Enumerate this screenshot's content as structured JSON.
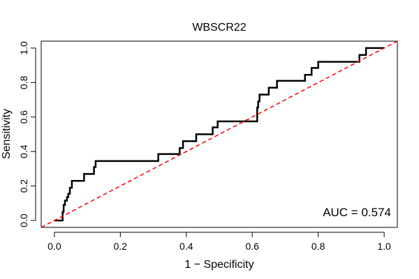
{
  "chart_data": {
    "type": "line",
    "title": "WBSCR22",
    "xlabel": "1 − Specificity",
    "ylabel": "Sensitivity",
    "xlim": [
      -0.04,
      1.04
    ],
    "ylim": [
      -0.04,
      1.04
    ],
    "xticks": [
      0.0,
      0.2,
      0.4,
      0.6,
      0.8,
      1.0
    ],
    "xtick_labels": [
      "0.0",
      "0.2",
      "0.4",
      "0.6",
      "0.8",
      "1.0"
    ],
    "yticks": [
      0.0,
      0.2,
      0.4,
      0.6,
      0.8,
      1.0
    ],
    "ytick_labels": [
      "0.0",
      "0.2",
      "0.4",
      "0.6",
      "0.8",
      "1.0"
    ],
    "grid": false,
    "annotation": "AUC = 0.574",
    "series": [
      {
        "color": "#000000",
        "style": "solid",
        "x": [
          0.0,
          0.025,
          0.025,
          0.028,
          0.028,
          0.032,
          0.032,
          0.038,
          0.038,
          0.042,
          0.042,
          0.047,
          0.047,
          0.053,
          0.053,
          0.065,
          0.065,
          0.09,
          0.09,
          0.12,
          0.12,
          0.125,
          0.125,
          0.315,
          0.315,
          0.38,
          0.38,
          0.39,
          0.39,
          0.43,
          0.43,
          0.48,
          0.48,
          0.495,
          0.495,
          0.615,
          0.615,
          0.618,
          0.618,
          0.622,
          0.622,
          0.65,
          0.65,
          0.66,
          0.66,
          0.675,
          0.675,
          0.76,
          0.76,
          0.78,
          0.78,
          0.8,
          0.8,
          0.925,
          0.925,
          0.945,
          0.945,
          1.0
        ],
        "y": [
          0.0,
          0.0,
          0.05,
          0.05,
          0.09,
          0.09,
          0.115,
          0.115,
          0.135,
          0.135,
          0.155,
          0.155,
          0.19,
          0.19,
          0.23,
          0.23,
          0.23,
          0.23,
          0.27,
          0.27,
          0.31,
          0.31,
          0.345,
          0.345,
          0.385,
          0.385,
          0.42,
          0.42,
          0.46,
          0.46,
          0.5,
          0.5,
          0.54,
          0.54,
          0.575,
          0.575,
          0.655,
          0.655,
          0.69,
          0.69,
          0.73,
          0.73,
          0.77,
          0.77,
          0.77,
          0.77,
          0.81,
          0.81,
          0.845,
          0.845,
          0.885,
          0.885,
          0.92,
          0.92,
          0.96,
          0.96,
          1.0,
          1.0
        ]
      },
      {
        "color": "#ff0000",
        "style": "dashed",
        "x": [
          -0.04,
          1.04
        ],
        "y": [
          -0.04,
          1.04
        ]
      }
    ]
  }
}
